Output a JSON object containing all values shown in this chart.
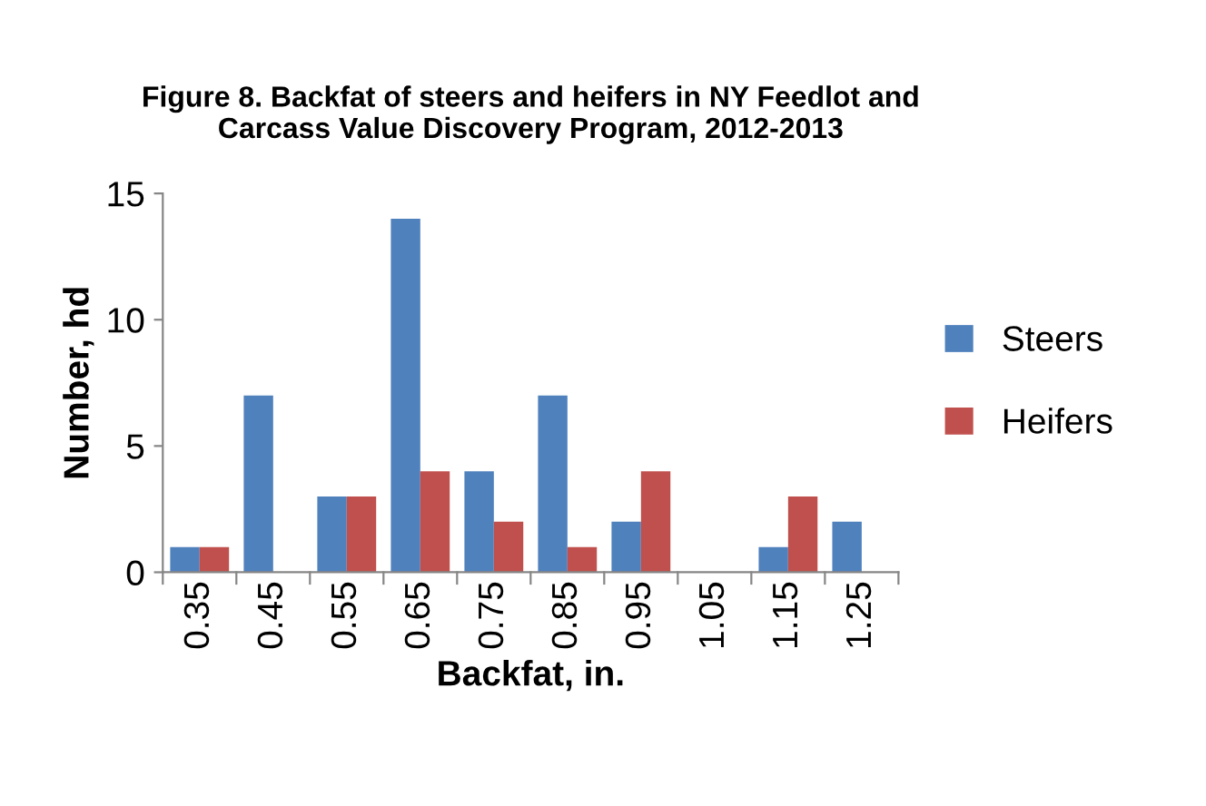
{
  "chart_data": {
    "type": "bar",
    "title": "Figure 8. Backfat of steers and heifers in NY Feedlot and\nCarcass Value Discovery Program, 2012-2013",
    "xlabel": "Backfat, in.",
    "ylabel": "Number, hd",
    "categories": [
      "0.35",
      "0.45",
      "0.55",
      "0.65",
      "0.75",
      "0.85",
      "0.95",
      "1.05",
      "1.15",
      "1.25"
    ],
    "series": [
      {
        "name": "Steers",
        "color": "#4f81bd",
        "values": [
          1,
          7,
          3,
          14,
          4,
          7,
          2,
          0,
          1,
          2
        ]
      },
      {
        "name": "Heifers",
        "color": "#c0504d",
        "values": [
          1,
          0,
          3,
          4,
          2,
          1,
          4,
          0,
          3,
          0
        ]
      }
    ],
    "ylim": [
      0,
      15
    ],
    "yticks": [
      0,
      5,
      10,
      15
    ],
    "grid": false,
    "legend": "right"
  }
}
